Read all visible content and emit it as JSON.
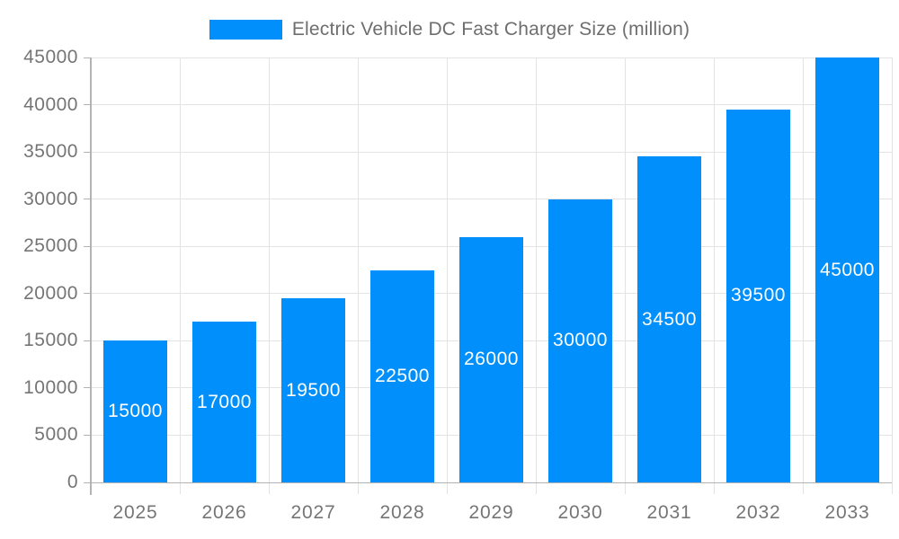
{
  "chart_data": {
    "type": "bar",
    "title": "Electric Vehicle DC Fast Charger Size (million)",
    "categories": [
      "2025",
      "2026",
      "2027",
      "2028",
      "2029",
      "2030",
      "2031",
      "2032",
      "2033"
    ],
    "values": [
      15000,
      17000,
      19500,
      22500,
      26000,
      30000,
      34500,
      39500,
      45000
    ],
    "yticks": [
      0,
      5000,
      10000,
      15000,
      20000,
      25000,
      30000,
      35000,
      40000,
      45000
    ],
    "ylim": [
      0,
      45000
    ],
    "xlabel": "",
    "ylabel": "",
    "grid": true,
    "legend_position": "top",
    "bar_color": "#008FFB",
    "bar_label_color": "#ffffff",
    "axis_text_color": "#757575",
    "legend_text_color": "#6e6e6e",
    "gridline_color": "#e3e3e3",
    "axis_line_color": "#b3b3b3",
    "background_color": "#ffffff"
  }
}
